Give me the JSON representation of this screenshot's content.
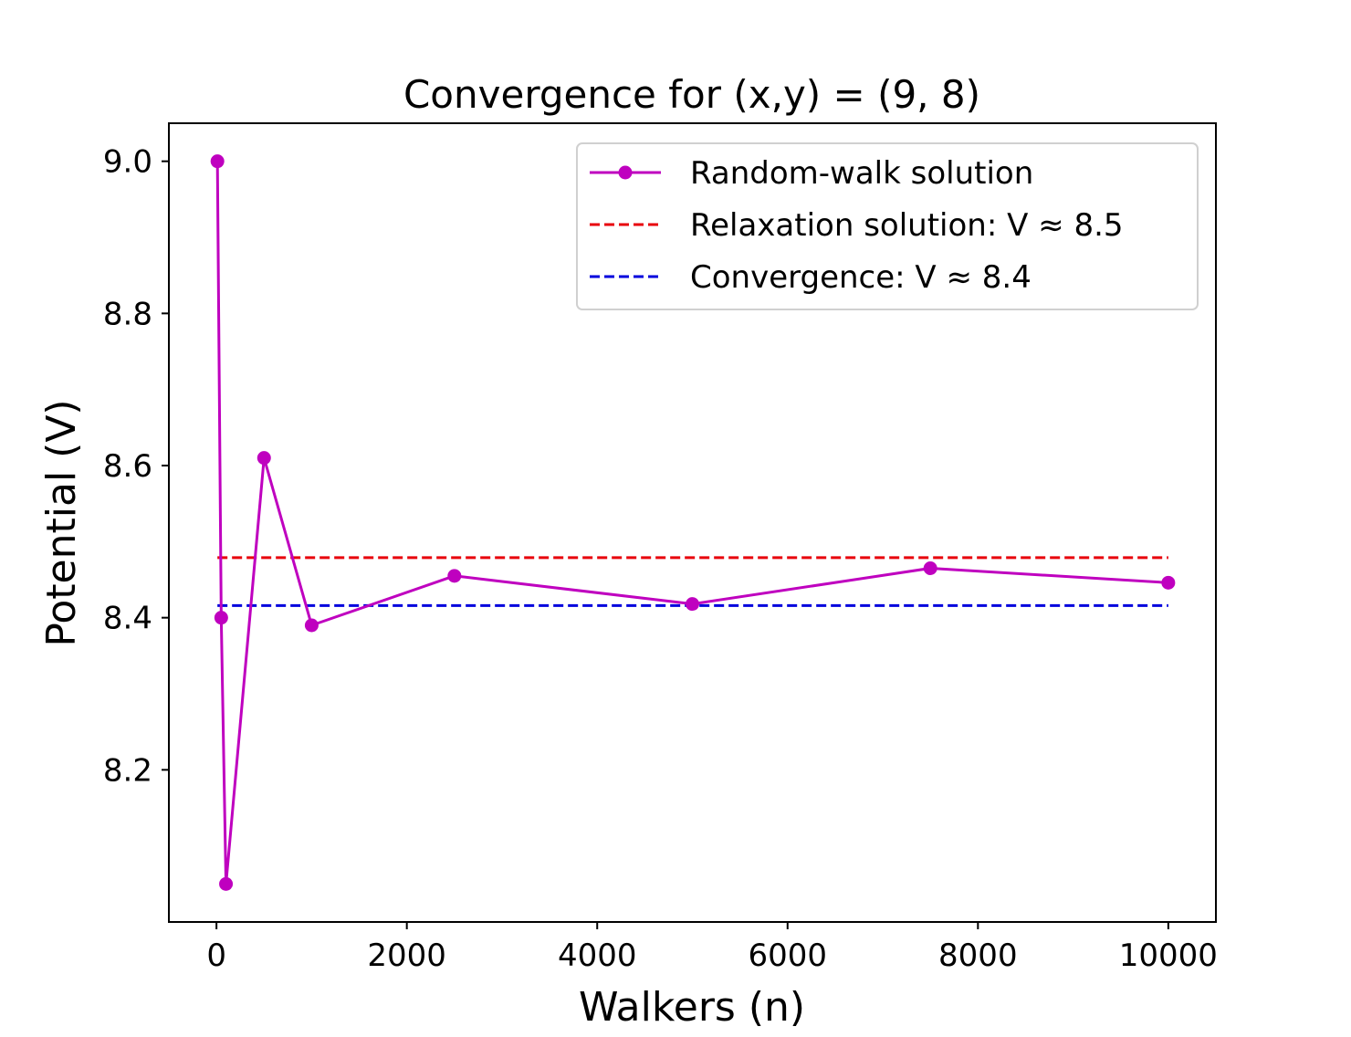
{
  "chart_data": {
    "type": "line",
    "title": "Convergence for (x,y) = (9, 8)",
    "xlabel": "Walkers (n)",
    "ylabel": "Potential (V)",
    "xlim": [
      -500,
      10500
    ],
    "ylim": [
      8.0,
      9.05
    ],
    "xticks": [
      0,
      2000,
      4000,
      6000,
      8000,
      10000
    ],
    "xtick_labels": [
      "0",
      "2000",
      "4000",
      "6000",
      "8000",
      "10000"
    ],
    "yticks": [
      8.2,
      8.4,
      8.6,
      8.8,
      9.0
    ],
    "ytick_labels": [
      "8.2",
      "8.4",
      "8.6",
      "8.8",
      "9.0"
    ],
    "grid": false,
    "legend_position": "top-right",
    "series": [
      {
        "name": "Random-walk solution",
        "kind": "line-marker",
        "color": "#bf00bf",
        "x": [
          10,
          50,
          100,
          500,
          1000,
          2500,
          5000,
          7500,
          10000
        ],
        "y": [
          9.0,
          8.4,
          8.05,
          8.61,
          8.39,
          8.455,
          8.418,
          8.465,
          8.446
        ]
      },
      {
        "name": "Relaxation solution: V ≈ 8.5",
        "kind": "hline-dashed",
        "color": "#e8000b",
        "x": [
          10,
          10000
        ],
        "y": [
          8.479,
          8.479
        ]
      },
      {
        "name": "Convergence:  V ≈ 8.4",
        "kind": "hline-dashed",
        "color": "#0000dd",
        "x": [
          10,
          10000
        ],
        "y": [
          8.416,
          8.416
        ]
      }
    ]
  }
}
